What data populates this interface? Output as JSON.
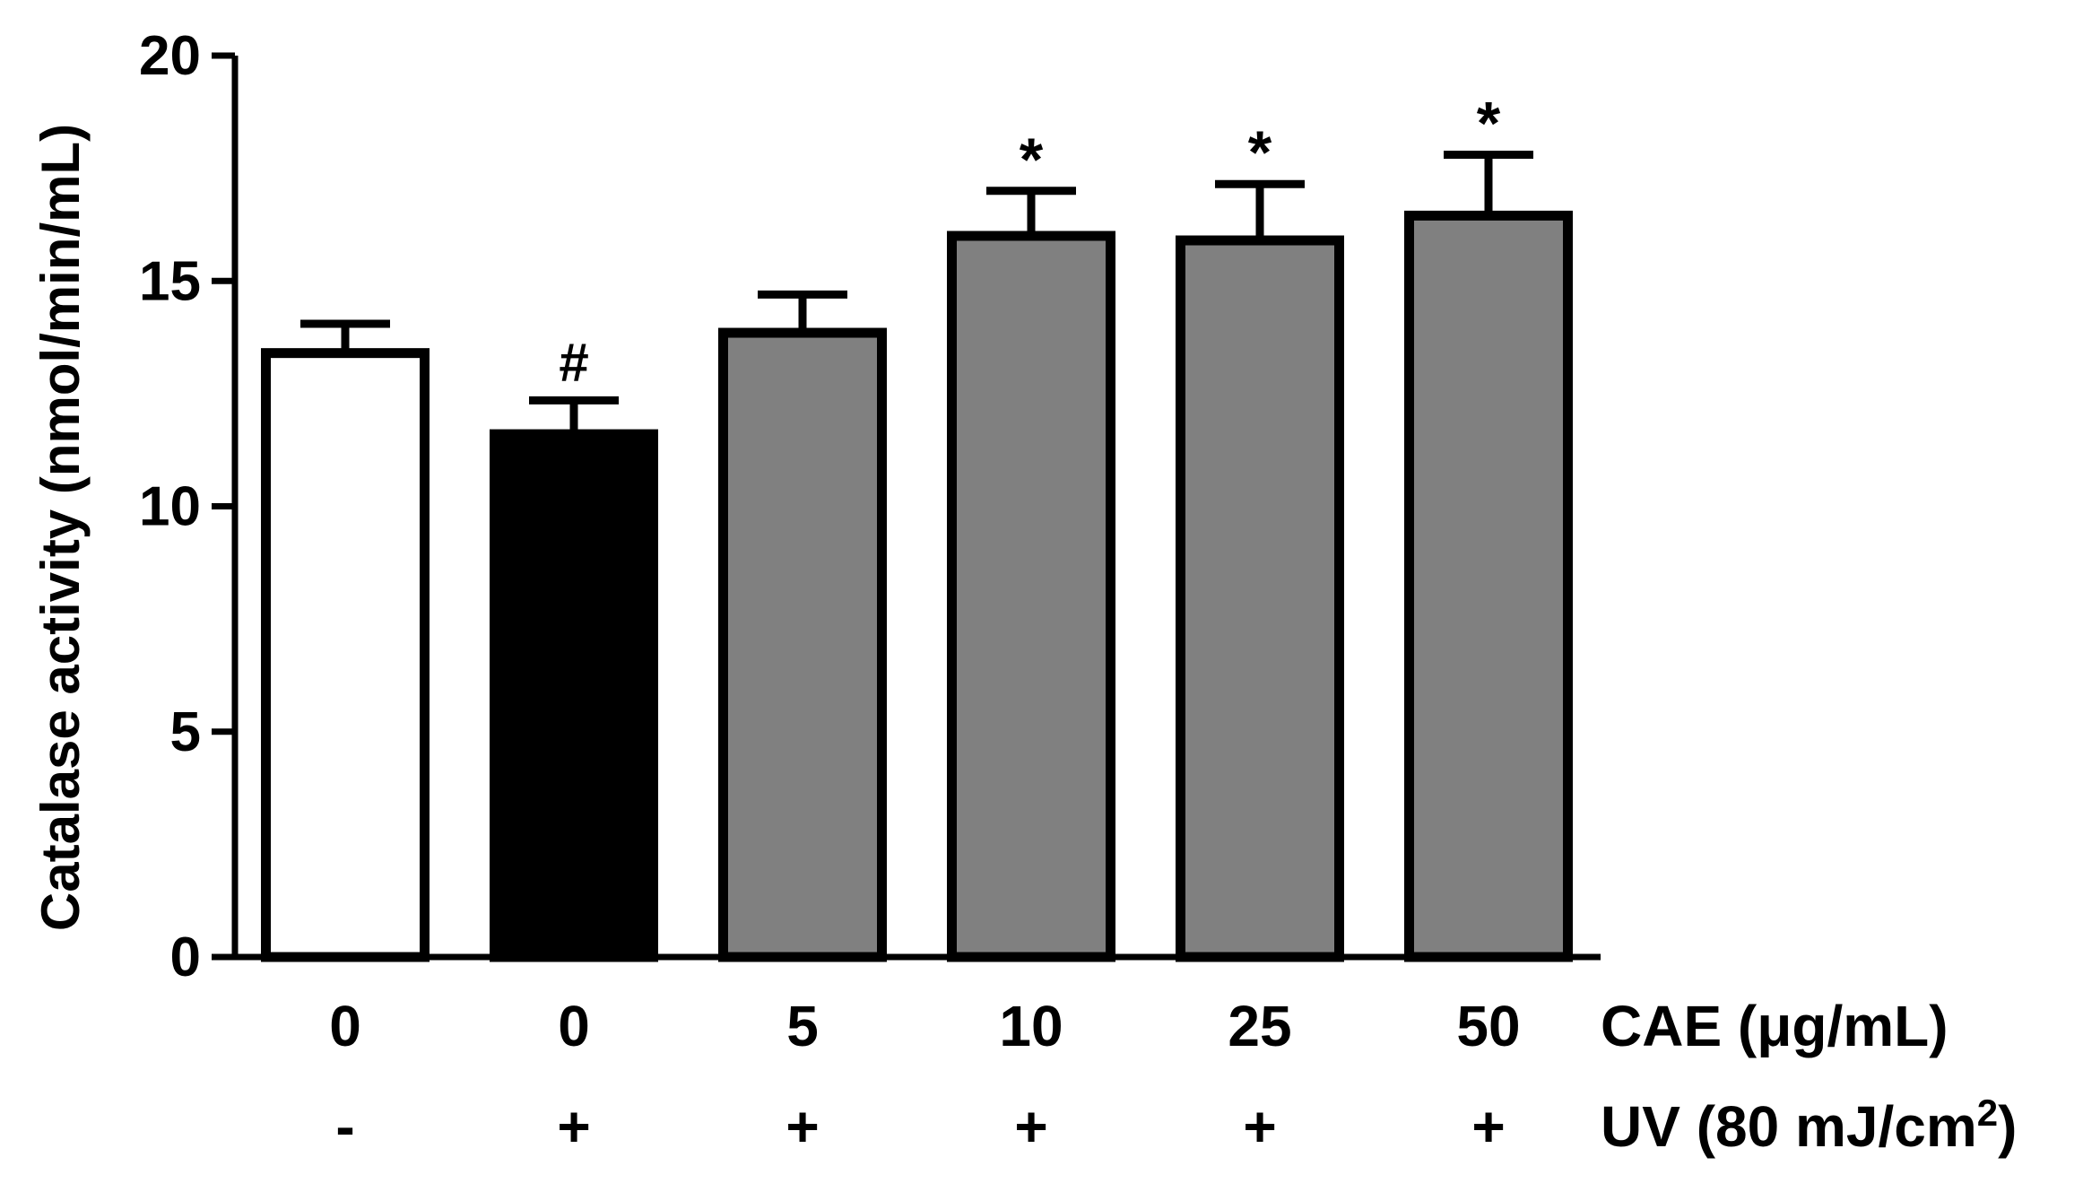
{
  "chart_data": {
    "type": "bar",
    "categories": [
      "0",
      "0",
      "5",
      "10",
      "25",
      "50"
    ],
    "uv_labels": [
      "-",
      "+",
      "+",
      "+",
      "+",
      "+"
    ],
    "values": [
      13.4,
      11.6,
      13.85,
      16.0,
      15.9,
      16.45
    ],
    "errors": [
      0.65,
      0.75,
      0.85,
      1.0,
      1.25,
      1.35
    ],
    "annotations": [
      "",
      "#",
      "",
      "*",
      "*",
      "*"
    ],
    "bar_colors": [
      "#ffffff",
      "#000000",
      "#808080",
      "#808080",
      "#808080",
      "#808080"
    ],
    "ylabel": "Catalase activity (nmol/min/mL)",
    "xlabel_row1": "CAE (μg/mL)",
    "xlabel_row2_prefix": "UV (80 mJ/cm",
    "xlabel_row2_sup": "2",
    "xlabel_row2_suffix": ")",
    "ylim": [
      0,
      20
    ],
    "yticks": [
      0,
      5,
      10,
      15,
      20
    ],
    "grid": false,
    "legend": "none"
  }
}
